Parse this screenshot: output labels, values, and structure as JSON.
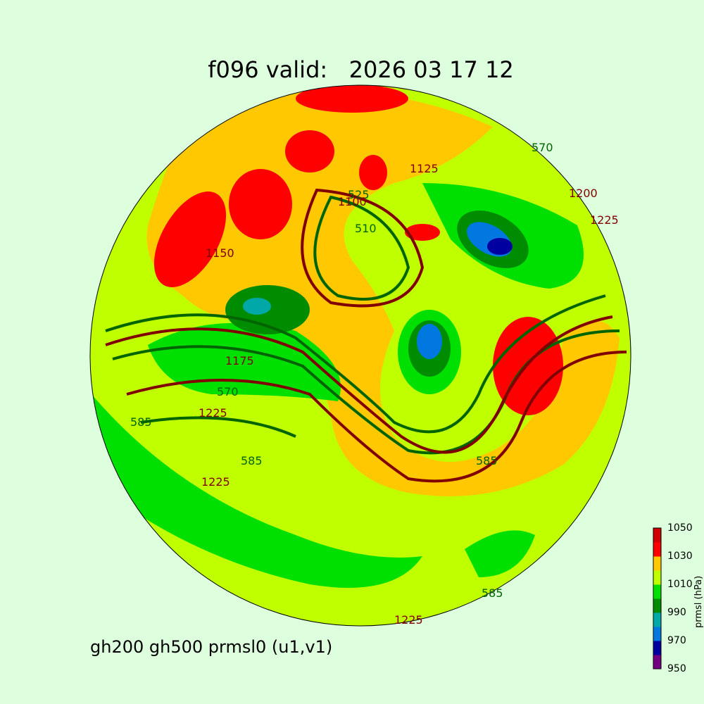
{
  "title": "f096 valid:   2026 03 17 12",
  "subtitle": "gh200 gh500 prmsl0 (u1,v1)",
  "colorbar": {
    "label": "prmsl (hPa)",
    "ticks": [
      "1050",
      "1030",
      "1010",
      "990",
      "970",
      "950"
    ],
    "bands": [
      {
        "from": 950,
        "to": 960,
        "color": "#730080"
      },
      {
        "from": 960,
        "to": 970,
        "color": "#0000a0"
      },
      {
        "from": 970,
        "to": 980,
        "color": "#0078e0"
      },
      {
        "from": 980,
        "to": 990,
        "color": "#00a8a8"
      },
      {
        "from": 990,
        "to": 1000,
        "color": "#008c00"
      },
      {
        "from": 1000,
        "to": 1010,
        "color": "#00e000"
      },
      {
        "from": 1010,
        "to": 1020,
        "color": "#c0ff00"
      },
      {
        "from": 1020,
        "to": 1030,
        "color": "#ffc800"
      },
      {
        "from": 1030,
        "to": 1040,
        "color": "#ff0000"
      },
      {
        "from": 1040,
        "to": 1050,
        "color": "#d00000"
      }
    ]
  },
  "contours": {
    "gh500_color": "#006400",
    "gh200_color": "#800000",
    "labels": [
      {
        "text": "570",
        "layer": "gh500"
      },
      {
        "text": "585",
        "layer": "gh500"
      },
      {
        "text": "585",
        "layer": "gh500"
      },
      {
        "text": "585",
        "layer": "gh500"
      },
      {
        "text": "585",
        "layer": "gh500"
      },
      {
        "text": "570",
        "layer": "gh500"
      },
      {
        "text": "525",
        "layer": "gh500"
      },
      {
        "text": "510",
        "layer": "gh500"
      },
      {
        "text": "1175",
        "layer": "gh200"
      },
      {
        "text": "1225",
        "layer": "gh200"
      },
      {
        "text": "1225",
        "layer": "gh200"
      },
      {
        "text": "1150",
        "layer": "gh200"
      },
      {
        "text": "1100",
        "layer": "gh200"
      },
      {
        "text": "1125",
        "layer": "gh200"
      },
      {
        "text": "1200",
        "layer": "gh200"
      },
      {
        "text": "1225",
        "layer": "gh200"
      },
      {
        "text": "1225",
        "layer": "gh200"
      }
    ]
  }
}
